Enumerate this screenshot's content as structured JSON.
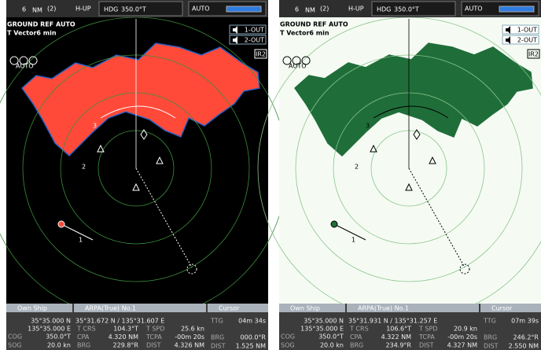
{
  "panels": [
    {
      "header": {
        "range": "6",
        "unit": "NM",
        "scale": "(2)",
        "mode": "H-UP",
        "hdg_label": "HDG",
        "heading": "350.0°T",
        "gain": "AUTO"
      },
      "status": [
        "GROUND REF AUTO",
        "T Vector6 min"
      ],
      "auto": "AUTO",
      "outputs": [
        "1-OUT",
        "2-OUT"
      ],
      "ir": "IR2",
      "targets": [
        "3",
        "2",
        "1"
      ],
      "own_ship": {
        "title": "Own Ship",
        "lat": "35°35.000 N",
        "lon": "135°35.000 E",
        "rows": [
          [
            "COG",
            "350.0°T"
          ],
          [
            "SOG",
            "20.0 kn"
          ]
        ]
      },
      "arpa": {
        "title": "ARPA(True) No.1",
        "position": "35°31.672 N / 135°31.607 E",
        "rows": [
          [
            "T CRS",
            "104.3°T",
            "T SPD",
            "25.6 kn"
          ],
          [
            "CPA",
            "4.320 NM",
            "TCPA",
            "-00m 20s"
          ],
          [
            "BRG",
            "229.8°R",
            "DIST",
            "4.326 NM"
          ]
        ]
      },
      "cursor": {
        "title": "Cursor",
        "rows": [
          [
            "TTG",
            "04m 34s"
          ],
          [
            "BRG",
            "000.0°R"
          ],
          [
            "DIST",
            "1.525 NM"
          ]
        ]
      }
    },
    {
      "header": {
        "range": "6",
        "unit": "NM",
        "scale": "(2)",
        "mode": "H-UP",
        "hdg_label": "HDG",
        "heading": "350.0°T",
        "gain": "AUTO"
      },
      "status": [
        "GROUND REF AUTO",
        "T Vector6 min"
      ],
      "auto": "AUTO",
      "outputs": [
        "1-OUT",
        "2-OUT"
      ],
      "ir": "IR2",
      "targets": [
        "3",
        "2",
        "1"
      ],
      "own_ship": {
        "title": "Own Ship",
        "lat": "35°35.000 N",
        "lon": "135°35.000 E",
        "rows": [
          [
            "COG",
            "350.0°T"
          ],
          [
            "SOG",
            "20.0 kn"
          ]
        ]
      },
      "arpa": {
        "title": "ARPA(True) No.1",
        "position": "35°31.931 N / 135°31.257 E",
        "rows": [
          [
            "T CRS",
            "106.6°T",
            "T SPD",
            "20.9 kn"
          ],
          [
            "CPA",
            "4.322 NM",
            "TCPA",
            "-00m 20s"
          ],
          [
            "BRG",
            "234.9°R",
            "DIST",
            "4.327 NM"
          ]
        ]
      },
      "cursor": {
        "title": "Cursor",
        "rows": [
          [
            "TTG",
            "07m 39s"
          ],
          [
            "BRG",
            "246.2°R"
          ],
          [
            "DIST",
            "2.550 NM"
          ]
        ]
      }
    }
  ]
}
